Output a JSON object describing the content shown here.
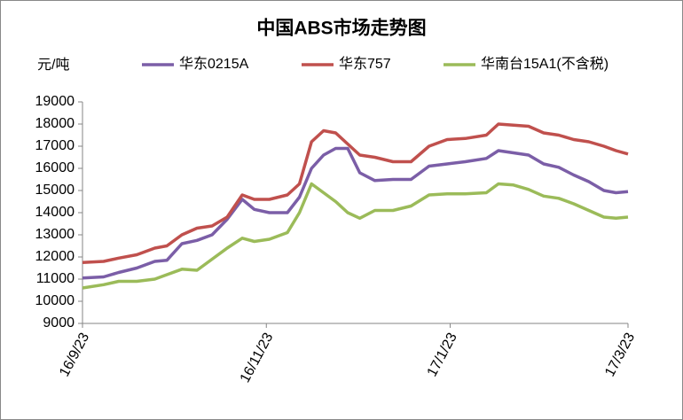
{
  "chart_data": {
    "type": "line",
    "title": "中国ABS市场走势图",
    "y_label": "元/吨",
    "x": [
      "16/9/23",
      "16/9/30",
      "16/10/5",
      "16/10/11",
      "16/10/17",
      "16/10/21",
      "16/10/26",
      "16/10/31",
      "16/11/5",
      "16/11/10",
      "16/11/15",
      "16/11/19",
      "16/11/24",
      "16/11/30",
      "16/12/4",
      "16/12/8",
      "16/12/12",
      "16/12/16",
      "16/12/20",
      "16/12/24",
      "16/12/29",
      "17/1/4",
      "17/1/10",
      "17/1/16",
      "17/1/22",
      "17/1/28",
      "17/2/4",
      "17/2/8",
      "17/2/13",
      "17/2/18",
      "17/2/23",
      "17/2/28",
      "17/3/5",
      "17/3/10",
      "17/3/15",
      "17/3/19",
      "17/3/23"
    ],
    "series": [
      {
        "name": "华东0215A",
        "color": "#7b5ea7",
        "values": [
          11050,
          11100,
          11300,
          11500,
          11800,
          11850,
          12600,
          12750,
          13000,
          13700,
          14600,
          14150,
          14000,
          14000,
          14700,
          16000,
          16600,
          16900,
          16900,
          15800,
          15450,
          15500,
          15500,
          16100,
          16200,
          16300,
          16450,
          16800,
          16700,
          16600,
          16200,
          16050,
          15700,
          15400,
          15000,
          14900,
          14950
        ]
      },
      {
        "name": "华东757",
        "color": "#c0504d",
        "values": [
          11750,
          11800,
          11950,
          12100,
          12400,
          12500,
          13000,
          13300,
          13400,
          13800,
          14800,
          14600,
          14600,
          14800,
          15300,
          17200,
          17700,
          17600,
          17100,
          16600,
          16500,
          16300,
          16300,
          17000,
          17300,
          17350,
          17500,
          18000,
          17950,
          17900,
          17600,
          17500,
          17300,
          17200,
          17000,
          16800,
          16650
        ]
      },
      {
        "name": "华南台15A1(不含税)",
        "color": "#9bbb59",
        "values": [
          10600,
          10750,
          10900,
          10900,
          11000,
          11200,
          11450,
          11400,
          11900,
          12400,
          12850,
          12700,
          12800,
          13100,
          14000,
          15300,
          14900,
          14500,
          14000,
          13750,
          14100,
          14100,
          14300,
          14800,
          14850,
          14850,
          14900,
          15300,
          15250,
          15050,
          14750,
          14650,
          14400,
          14100,
          13800,
          13750,
          13800
        ]
      }
    ],
    "xlim": [
      "16/9/23",
      "17/3/23"
    ],
    "xticks": [
      "16/9/23",
      "16/11/23",
      "17/1/23",
      "17/3/23"
    ],
    "ylim": [
      9000,
      19000
    ],
    "yticks": [
      9000,
      10000,
      11000,
      12000,
      13000,
      14000,
      15000,
      16000,
      17000,
      18000,
      19000
    ]
  }
}
